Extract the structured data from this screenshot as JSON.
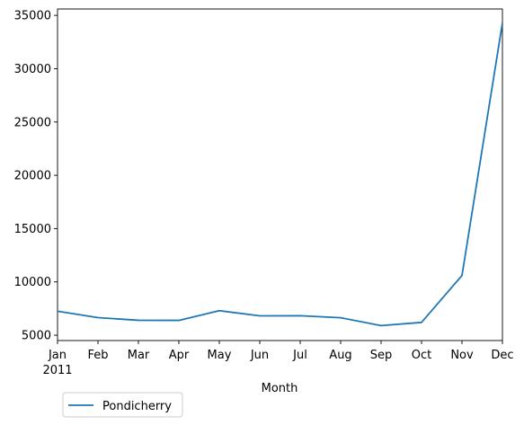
{
  "chart_data": {
    "type": "line",
    "title": "",
    "xlabel": "Month",
    "ylabel": "",
    "x": [
      "Jan",
      "Feb",
      "Mar",
      "Apr",
      "May",
      "Jun",
      "Jul",
      "Aug",
      "Sep",
      "Oct",
      "Nov",
      "Dec"
    ],
    "x_year_label": "2011",
    "ylim": [
      4500,
      35600
    ],
    "yticks": [
      5000,
      10000,
      15000,
      20000,
      25000,
      30000,
      35000
    ],
    "grid": false,
    "legend_position": "below-left",
    "series": [
      {
        "name": "Pondicherry",
        "color": "#1f77b4",
        "values": [
          7250,
          6650,
          6400,
          6390,
          7300,
          6820,
          6830,
          6640,
          5900,
          6200,
          10600,
          34300
        ]
      }
    ]
  }
}
